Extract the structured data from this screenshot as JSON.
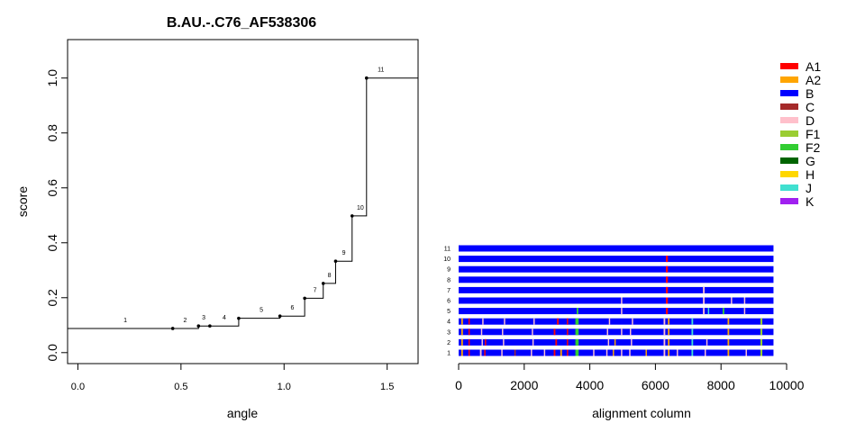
{
  "chart_data": [
    {
      "type": "line",
      "subtype": "step",
      "title": "B.AU.-.C76_AF538306",
      "xlabel": "angle",
      "ylabel": "score",
      "xlim": [
        -0.05,
        1.65
      ],
      "ylim": [
        -0.04,
        1.14
      ],
      "x_ticks": [
        {
          "value": 0.0,
          "label": "0.0"
        },
        {
          "value": 0.5,
          "label": "0.5"
        },
        {
          "value": 1.0,
          "label": "1.0"
        },
        {
          "value": 1.5,
          "label": "1.5"
        }
      ],
      "y_ticks": [
        {
          "value": 0.0,
          "label": "0.0"
        },
        {
          "value": 0.2,
          "label": "0.2"
        },
        {
          "value": 0.4,
          "label": "0.4"
        },
        {
          "value": 0.6,
          "label": "0.6"
        },
        {
          "value": 0.8,
          "label": "0.8"
        },
        {
          "value": 1.0,
          "label": "1.0"
        }
      ],
      "step_start": {
        "x": -0.05,
        "y": 0.088
      },
      "step_end_x": 1.65,
      "points": [
        {
          "label": "1",
          "x": 0.46,
          "y": 0.088,
          "label_x": 0.23
        },
        {
          "label": "2",
          "x": 0.585,
          "y": 0.097,
          "label_x": 0.52
        },
        {
          "label": "3",
          "x": 0.64,
          "y": 0.097,
          "label_x": 0.61
        },
        {
          "label": "4",
          "x": 0.78,
          "y": 0.125,
          "label_x": 0.71
        },
        {
          "label": "5",
          "x": 0.98,
          "y": 0.133,
          "label_x": 0.89
        },
        {
          "label": "6",
          "x": 1.1,
          "y": 0.198,
          "label_x": 1.04
        },
        {
          "label": "7",
          "x": 1.19,
          "y": 0.252,
          "label_x": 1.15
        },
        {
          "label": "8",
          "x": 1.25,
          "y": 0.333,
          "label_x": 1.22
        },
        {
          "label": "9",
          "x": 1.33,
          "y": 0.498,
          "label_x": 1.29
        },
        {
          "label": "10",
          "x": 1.4,
          "y": 1.0,
          "label_x": 1.37
        },
        {
          "label": "11",
          "x": null,
          "y": 1.0,
          "label_x": 1.47
        }
      ]
    },
    {
      "type": "heatmap",
      "xlabel": "alignment column",
      "xlim": [
        0,
        10000
      ],
      "x_ticks": [
        {
          "value": 0,
          "label": "0"
        },
        {
          "value": 2000,
          "label": "2000"
        },
        {
          "value": 4000,
          "label": "4000"
        },
        {
          "value": 6000,
          "label": "6000"
        },
        {
          "value": 8000,
          "label": "8000"
        },
        {
          "value": 10000,
          "label": "10000"
        }
      ],
      "alignment_length": 9600,
      "base_color": "#0000ff",
      "legend_position": "top-right",
      "legend": [
        {
          "label": "A1",
          "color": "#ff0000"
        },
        {
          "label": "A2",
          "color": "#ffa500"
        },
        {
          "label": "B",
          "color": "#0000ff"
        },
        {
          "label": "C",
          "color": "#a52a2a"
        },
        {
          "label": "D",
          "color": "#ffc0cb"
        },
        {
          "label": "F1",
          "color": "#9acd32"
        },
        {
          "label": "F2",
          "color": "#32cd32"
        },
        {
          "label": "G",
          "color": "#006400"
        },
        {
          "label": "H",
          "color": "#ffd700"
        },
        {
          "label": "J",
          "color": "#40e0d0"
        },
        {
          "label": "K",
          "color": "#a020f0"
        }
      ],
      "rows": [
        {
          "label": "1",
          "segments": [
            {
              "start": 80,
              "end": 130,
              "color": "#ffa500"
            },
            {
              "start": 300,
              "end": 340,
              "color": "#ff0000"
            },
            {
              "start": 650,
              "end": 700,
              "color": "#ffc0cb"
            },
            {
              "start": 780,
              "end": 820,
              "color": "#ff0000"
            },
            {
              "start": 1300,
              "end": 1340,
              "color": "#ffc0cb"
            },
            {
              "start": 1700,
              "end": 1740,
              "color": "#a52a2a"
            },
            {
              "start": 2200,
              "end": 2240,
              "color": "#ffc0cb"
            },
            {
              "start": 2600,
              "end": 2640,
              "color": "#ffc0cb"
            },
            {
              "start": 2900,
              "end": 2950,
              "color": "#ff0000"
            },
            {
              "start": 3100,
              "end": 3150,
              "color": "#ffa500"
            },
            {
              "start": 3300,
              "end": 3340,
              "color": "#ff0000"
            },
            {
              "start": 3560,
              "end": 3660,
              "color": "#32cd32"
            },
            {
              "start": 4100,
              "end": 4140,
              "color": "#ffc0cb"
            },
            {
              "start": 4500,
              "end": 4540,
              "color": "#ffc0cb"
            },
            {
              "start": 4700,
              "end": 4740,
              "color": "#ffa500"
            },
            {
              "start": 4950,
              "end": 4990,
              "color": "#ffc0cb"
            },
            {
              "start": 5200,
              "end": 5240,
              "color": "#ffc0cb"
            },
            {
              "start": 5700,
              "end": 5740,
              "color": "#ffa500"
            },
            {
              "start": 6250,
              "end": 6300,
              "color": "#ffc0cb"
            },
            {
              "start": 6380,
              "end": 6430,
              "color": "#ffa500"
            },
            {
              "start": 6650,
              "end": 6690,
              "color": "#ffc0cb"
            },
            {
              "start": 7100,
              "end": 7150,
              "color": "#40e0d0"
            },
            {
              "start": 7500,
              "end": 7540,
              "color": "#ffc0cb"
            },
            {
              "start": 8200,
              "end": 8250,
              "color": "#ffa500"
            },
            {
              "start": 8750,
              "end": 8790,
              "color": "#ffc0cb"
            },
            {
              "start": 9200,
              "end": 9260,
              "color": "#9acd32"
            }
          ]
        },
        {
          "label": "2",
          "segments": [
            {
              "start": 80,
              "end": 130,
              "color": "#ffa500"
            },
            {
              "start": 300,
              "end": 340,
              "color": "#ff0000"
            },
            {
              "start": 700,
              "end": 740,
              "color": "#ffc0cb"
            },
            {
              "start": 800,
              "end": 840,
              "color": "#ff0000"
            },
            {
              "start": 1350,
              "end": 1390,
              "color": "#ffc0cb"
            },
            {
              "start": 2250,
              "end": 2290,
              "color": "#ffc0cb"
            },
            {
              "start": 2950,
              "end": 3000,
              "color": "#ff0000"
            },
            {
              "start": 3300,
              "end": 3340,
              "color": "#ff0000"
            },
            {
              "start": 3560,
              "end": 3660,
              "color": "#32cd32"
            },
            {
              "start": 4550,
              "end": 4590,
              "color": "#ffc0cb"
            },
            {
              "start": 4750,
              "end": 4790,
              "color": "#ffa500"
            },
            {
              "start": 5250,
              "end": 5290,
              "color": "#ffc0cb"
            },
            {
              "start": 6250,
              "end": 6300,
              "color": "#ffc0cb"
            },
            {
              "start": 6380,
              "end": 6430,
              "color": "#ffa500"
            },
            {
              "start": 7100,
              "end": 7150,
              "color": "#40e0d0"
            },
            {
              "start": 7550,
              "end": 7590,
              "color": "#ffc0cb"
            },
            {
              "start": 8200,
              "end": 8250,
              "color": "#ffa500"
            },
            {
              "start": 9200,
              "end": 9260,
              "color": "#9acd32"
            }
          ]
        },
        {
          "label": "3",
          "segments": [
            {
              "start": 80,
              "end": 130,
              "color": "#ffa500"
            },
            {
              "start": 300,
              "end": 340,
              "color": "#ff0000"
            },
            {
              "start": 680,
              "end": 720,
              "color": "#ffc0cb"
            },
            {
              "start": 1320,
              "end": 1360,
              "color": "#ffc0cb"
            },
            {
              "start": 2230,
              "end": 2270,
              "color": "#ffc0cb"
            },
            {
              "start": 2900,
              "end": 2950,
              "color": "#ff0000"
            },
            {
              "start": 3300,
              "end": 3340,
              "color": "#ff0000"
            },
            {
              "start": 3560,
              "end": 3660,
              "color": "#32cd32"
            },
            {
              "start": 4520,
              "end": 4560,
              "color": "#ffc0cb"
            },
            {
              "start": 4950,
              "end": 4990,
              "color": "#ffc0cb"
            },
            {
              "start": 5220,
              "end": 5260,
              "color": "#ffc0cb"
            },
            {
              "start": 6250,
              "end": 6300,
              "color": "#ffc0cb"
            },
            {
              "start": 6380,
              "end": 6430,
              "color": "#ffa500"
            },
            {
              "start": 7100,
              "end": 7150,
              "color": "#40e0d0"
            },
            {
              "start": 8200,
              "end": 8250,
              "color": "#ffa500"
            },
            {
              "start": 9200,
              "end": 9260,
              "color": "#9acd32"
            }
          ]
        },
        {
          "label": "4",
          "segments": [
            {
              "start": 80,
              "end": 130,
              "color": "#ffa500"
            },
            {
              "start": 300,
              "end": 340,
              "color": "#ff0000"
            },
            {
              "start": 720,
              "end": 760,
              "color": "#ffc0cb"
            },
            {
              "start": 1380,
              "end": 1420,
              "color": "#ffc0cb"
            },
            {
              "start": 2280,
              "end": 2320,
              "color": "#ffc0cb"
            },
            {
              "start": 3000,
              "end": 3050,
              "color": "#ff0000"
            },
            {
              "start": 3300,
              "end": 3340,
              "color": "#ff0000"
            },
            {
              "start": 3560,
              "end": 3660,
              "color": "#32cd32"
            },
            {
              "start": 4580,
              "end": 4620,
              "color": "#ffc0cb"
            },
            {
              "start": 5280,
              "end": 5320,
              "color": "#ffc0cb"
            },
            {
              "start": 6250,
              "end": 6300,
              "color": "#ffc0cb"
            },
            {
              "start": 6380,
              "end": 6430,
              "color": "#ffa500"
            },
            {
              "start": 7100,
              "end": 7150,
              "color": "#40e0d0"
            },
            {
              "start": 8200,
              "end": 8250,
              "color": "#ffa500"
            },
            {
              "start": 9200,
              "end": 9260,
              "color": "#9acd32"
            }
          ]
        },
        {
          "label": "5",
          "segments": [
            {
              "start": 3600,
              "end": 3650,
              "color": "#32cd32"
            },
            {
              "start": 4950,
              "end": 4990,
              "color": "#ffc0cb"
            },
            {
              "start": 6320,
              "end": 6380,
              "color": "#ff0000"
            },
            {
              "start": 7450,
              "end": 7500,
              "color": "#ffc0cb"
            },
            {
              "start": 7600,
              "end": 7640,
              "color": "#40e0d0"
            },
            {
              "start": 8050,
              "end": 8100,
              "color": "#32cd32"
            },
            {
              "start": 8700,
              "end": 8740,
              "color": "#ffc0cb"
            }
          ]
        },
        {
          "label": "6",
          "segments": [
            {
              "start": 4950,
              "end": 4990,
              "color": "#ffc0cb"
            },
            {
              "start": 6320,
              "end": 6380,
              "color": "#ff0000"
            },
            {
              "start": 7450,
              "end": 7500,
              "color": "#ffc0cb"
            },
            {
              "start": 8300,
              "end": 8340,
              "color": "#ffc0cb"
            },
            {
              "start": 8700,
              "end": 8740,
              "color": "#ffc0cb"
            }
          ]
        },
        {
          "label": "7",
          "segments": [
            {
              "start": 6320,
              "end": 6380,
              "color": "#ff0000"
            },
            {
              "start": 7450,
              "end": 7500,
              "color": "#ffc0cb"
            }
          ]
        },
        {
          "label": "8",
          "segments": [
            {
              "start": 6320,
              "end": 6380,
              "color": "#ff0000"
            }
          ]
        },
        {
          "label": "9",
          "segments": [
            {
              "start": 6320,
              "end": 6380,
              "color": "#ff0000"
            }
          ]
        },
        {
          "label": "10",
          "segments": [
            {
              "start": 6320,
              "end": 6380,
              "color": "#ff0000"
            }
          ]
        },
        {
          "label": "11",
          "segments": []
        }
      ]
    }
  ]
}
